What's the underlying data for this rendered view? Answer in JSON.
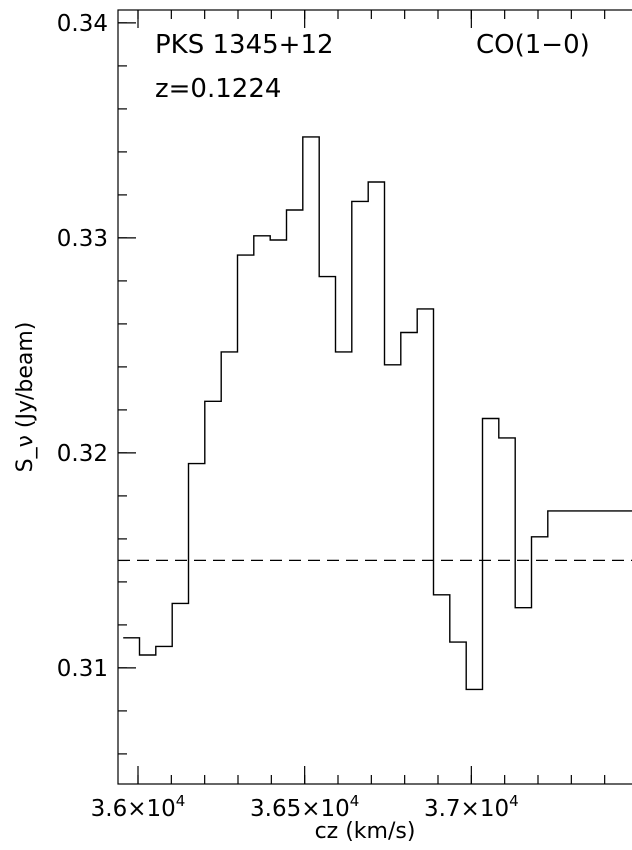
{
  "chart_data": {
    "type": "line",
    "style": "step",
    "annotations": {
      "source": "PKS 1345+12",
      "redshift": "z=0.1224",
      "line": "CO(1−0)"
    },
    "xlabel": "cz (km/s)",
    "ylabel": "S_ν (Jy/beam)",
    "xlim": [
      35940,
      37590
    ],
    "ylim": [
      0.3046,
      0.3406
    ],
    "x_ticks": [
      {
        "value": 36000,
        "label": "3.6×10",
        "exp": "4"
      },
      {
        "value": 36500,
        "label": "3.65×10",
        "exp": "4"
      },
      {
        "value": 37000,
        "label": "3.7×10",
        "exp": "4"
      }
    ],
    "y_ticks": [
      {
        "value": 0.31,
        "label": "0.31"
      },
      {
        "value": 0.32,
        "label": "0.32"
      },
      {
        "value": 0.33,
        "label": "0.33"
      },
      {
        "value": 0.34,
        "label": "0.34"
      }
    ],
    "baseline": {
      "value": 0.315,
      "style": "dashed"
    },
    "series": [
      {
        "x": [
          35980,
          36029,
          36078,
          36127,
          36176,
          36225,
          36274,
          36323,
          36372,
          36421,
          36470,
          36519,
          36568,
          36617,
          36666,
          36715,
          36764,
          36813,
          36862,
          36911,
          36960,
          37009,
          37058,
          37107,
          37156,
          37205,
          37254,
          37303,
          37352,
          37401,
          37450,
          37499,
          37548
        ],
        "values": [
          0.3114,
          0.3106,
          0.311,
          0.313,
          0.3195,
          0.3224,
          0.3247,
          0.3292,
          0.3301,
          0.3299,
          0.3313,
          0.3347,
          0.3282,
          0.3247,
          0.3317,
          0.3326,
          0.3241,
          0.3256,
          0.3267,
          0.3134,
          0.3112,
          0.309,
          0.3216,
          0.3207,
          0.3128,
          0.3161,
          0.3173,
          0.3173,
          0.3173,
          0.3173,
          0.3173,
          0.3173,
          0.3173
        ]
      }
    ]
  }
}
